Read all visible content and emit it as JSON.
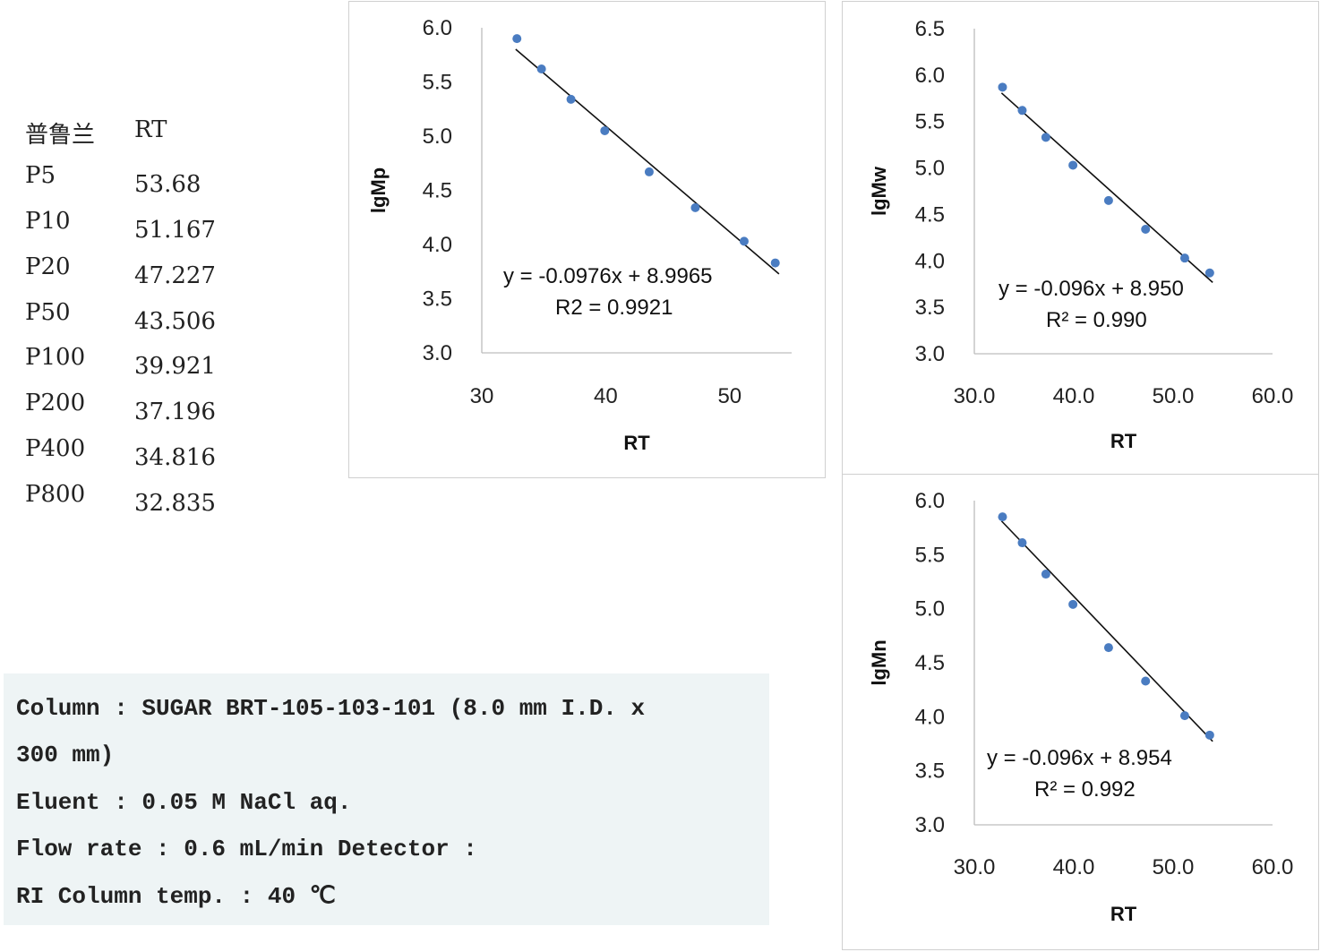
{
  "standards": {
    "header_name": "普鲁兰",
    "header_rt": "RT",
    "rows": [
      {
        "name": "P5",
        "rt": "53.68"
      },
      {
        "name": "P10",
        "rt": "51.167"
      },
      {
        "name": "P20",
        "rt": "47.227"
      },
      {
        "name": "P50",
        "rt": "43.506"
      },
      {
        "name": "P100",
        "rt": "39.921"
      },
      {
        "name": "P200",
        "rt": "37.196"
      },
      {
        "name": "P400",
        "rt": "34.816"
      },
      {
        "name": "P800",
        "rt": "32.835"
      }
    ]
  },
  "method": {
    "lines": [
      "Column : SUGAR BRT-105-103-101 (8.0 mm I.D. x",
      "300 mm)",
      "Eluent : 0.05 M NaCl aq.",
      "Flow rate : 0.6 mL/min Detector :",
      "RI Column temp. : 40 ℃"
    ]
  },
  "chart_data": [
    {
      "type": "scatter",
      "xlabel": "RT",
      "ylabel": "lgMp",
      "xlim": [
        30,
        55
      ],
      "ylim": [
        3.0,
        6.0
      ],
      "xticks": [
        "30",
        "40",
        "50"
      ],
      "yticks": [
        "3.0",
        "3.5",
        "4.0",
        "4.5",
        "5.0",
        "5.5",
        "6.0"
      ],
      "grid": false,
      "x": [
        32.835,
        34.816,
        37.196,
        39.921,
        43.506,
        47.227,
        51.167,
        53.68
      ],
      "y": [
        5.9,
        5.62,
        5.34,
        5.05,
        4.67,
        4.34,
        4.03,
        3.83
      ],
      "trendline": {
        "slope": -0.0976,
        "intercept": 8.9965
      },
      "equation": "y = -0.0976x + 8.9965",
      "r2_label": "R2 = 0.9921",
      "point_color": "#4a7cc1"
    },
    {
      "type": "scatter",
      "xlabel": "RT",
      "ylabel": "lgMw",
      "xlim": [
        30,
        60
      ],
      "ylim": [
        3.0,
        6.5
      ],
      "xticks": [
        "30.0",
        "40.0",
        "50.0",
        "60.0"
      ],
      "yticks": [
        "3.0",
        "3.5",
        "4.0",
        "4.5",
        "5.0",
        "5.5",
        "6.0",
        "6.5"
      ],
      "grid": false,
      "x": [
        32.835,
        34.816,
        37.196,
        39.921,
        43.506,
        47.227,
        51.167,
        53.68
      ],
      "y": [
        5.87,
        5.62,
        5.33,
        5.03,
        4.65,
        4.34,
        4.03,
        3.87
      ],
      "trendline": {
        "slope": -0.096,
        "intercept": 8.95
      },
      "equation": "y = -0.096x + 8.950",
      "r2_label": "R² = 0.990",
      "point_color": "#4a7cc1"
    },
    {
      "type": "scatter",
      "xlabel": "RT",
      "ylabel": "lgMn",
      "xlim": [
        30,
        60
      ],
      "ylim": [
        3.0,
        6.0
      ],
      "xticks": [
        "30.0",
        "40.0",
        "50.0",
        "60.0"
      ],
      "yticks": [
        "3.0",
        "3.5",
        "4.0",
        "4.5",
        "5.0",
        "5.5",
        "6.0"
      ],
      "grid": false,
      "x": [
        32.835,
        34.816,
        37.196,
        39.921,
        43.506,
        47.227,
        51.167,
        53.68
      ],
      "y": [
        5.85,
        5.61,
        5.32,
        5.04,
        4.64,
        4.33,
        4.01,
        3.83
      ],
      "trendline": {
        "slope": -0.096,
        "intercept": 8.954
      },
      "equation": "y = -0.096x + 8.954",
      "r2_label": "R² = 0.992",
      "point_color": "#4a7cc1"
    }
  ]
}
